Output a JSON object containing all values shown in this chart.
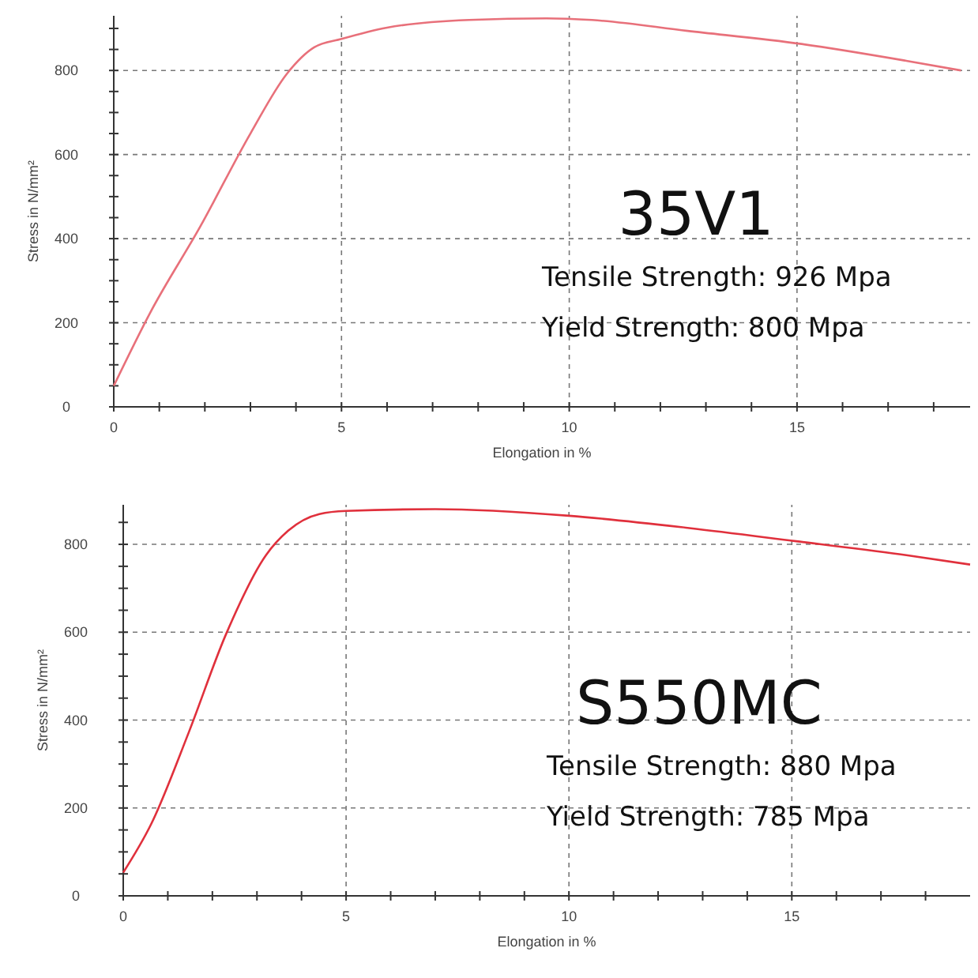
{
  "chart_data": [
    {
      "type": "line",
      "title": "35V1",
      "xlabel": "Elongation in %",
      "ylabel": "Stress in N/mm²",
      "annotations": [
        "Tensile Strength: 926 Mpa",
        "Yield Strength: 800 Mpa"
      ],
      "xlim": [
        0,
        18.8
      ],
      "ylim": [
        0,
        930
      ],
      "xticks": [
        0,
        {
          "value": 1,
          "label": null
        },
        {
          "value": 2,
          "label": null
        },
        {
          "value": 3,
          "label": null
        },
        {
          "value": 4,
          "label": null
        },
        5,
        {
          "value": 6,
          "label": null
        },
        {
          "value": 7,
          "label": null
        },
        {
          "value": 8,
          "label": null
        },
        {
          "value": 9,
          "label": null
        },
        10,
        {
          "value": 11,
          "label": null
        },
        {
          "value": 12,
          "label": null
        },
        {
          "value": 13,
          "label": null
        },
        {
          "value": 14,
          "label": null
        },
        15,
        {
          "value": 16,
          "label": null
        },
        {
          "value": 17,
          "label": null
        },
        {
          "value": 18,
          "label": null
        }
      ],
      "yticks": [
        0,
        {
          "value": 50,
          "label": null
        },
        {
          "value": 100,
          "label": null
        },
        {
          "value": 150,
          "label": null
        },
        200,
        {
          "value": 250,
          "label": null
        },
        {
          "value": 300,
          "label": null
        },
        {
          "value": 350,
          "label": null
        },
        400,
        {
          "value": 450,
          "label": null
        },
        {
          "value": 500,
          "label": null
        },
        {
          "value": 550,
          "label": null
        },
        600,
        {
          "value": 650,
          "label": null
        },
        {
          "value": 700,
          "label": null
        },
        {
          "value": 750,
          "label": null
        },
        800,
        {
          "value": 850,
          "label": null
        },
        {
          "value": 900,
          "label": null
        }
      ],
      "grid": true,
      "series": [
        {
          "color": "#e8707a",
          "x": [
            0,
            0.8,
            1.9,
            3.0,
            3.8,
            4.4,
            5,
            6,
            7.8,
            9.5,
            10.5,
            12.6,
            15.1,
            17.4,
            18.6
          ],
          "values": [
            50,
            224,
            429,
            650,
            792,
            855,
            875,
            902,
            920,
            924,
            920,
            894,
            863,
            823,
            800
          ]
        }
      ]
    },
    {
      "type": "line",
      "title": "S550MC",
      "xlabel": "Elongation in %",
      "ylabel": "Stress in N/mm²",
      "annotations": [
        "Tensile Strength: 880 Mpa",
        "Yield Strength: 785 Mpa"
      ],
      "xlim": [
        0,
        19
      ],
      "ylim": [
        0,
        890
      ],
      "xticks": [
        0,
        {
          "value": 1,
          "label": null
        },
        {
          "value": 2,
          "label": null
        },
        {
          "value": 3,
          "label": null
        },
        {
          "value": 4,
          "label": null
        },
        5,
        {
          "value": 6,
          "label": null
        },
        {
          "value": 7,
          "label": null
        },
        {
          "value": 8,
          "label": null
        },
        {
          "value": 9,
          "label": null
        },
        10,
        {
          "value": 11,
          "label": null
        },
        {
          "value": 12,
          "label": null
        },
        {
          "value": 13,
          "label": null
        },
        {
          "value": 14,
          "label": null
        },
        15,
        {
          "value": 16,
          "label": null
        },
        {
          "value": 17,
          "label": null
        },
        {
          "value": 18,
          "label": null
        }
      ],
      "yticks": [
        0,
        {
          "value": 50,
          "label": null
        },
        {
          "value": 100,
          "label": null
        },
        {
          "value": 150,
          "label": null
        },
        200,
        {
          "value": 250,
          "label": null
        },
        {
          "value": 300,
          "label": null
        },
        {
          "value": 350,
          "label": null
        },
        400,
        {
          "value": 450,
          "label": null
        },
        {
          "value": 500,
          "label": null
        },
        {
          "value": 550,
          "label": null
        },
        600,
        {
          "value": 650,
          "label": null
        },
        {
          "value": 700,
          "label": null
        },
        {
          "value": 750,
          "label": null
        },
        800,
        {
          "value": 850,
          "label": null
        }
      ],
      "grid": true,
      "series": [
        {
          "color": "#e0303c",
          "x": [
            0,
            0.63,
            1.47,
            2.3,
            3.2,
            3.7,
            4.4,
            5,
            7,
            10,
            12.7,
            15.1,
            17.6,
            19
          ],
          "values": [
            53,
            164,
            372,
            594,
            775,
            831,
            869,
            876,
            880,
            865,
            837,
            807,
            775,
            754
          ]
        }
      ]
    }
  ]
}
